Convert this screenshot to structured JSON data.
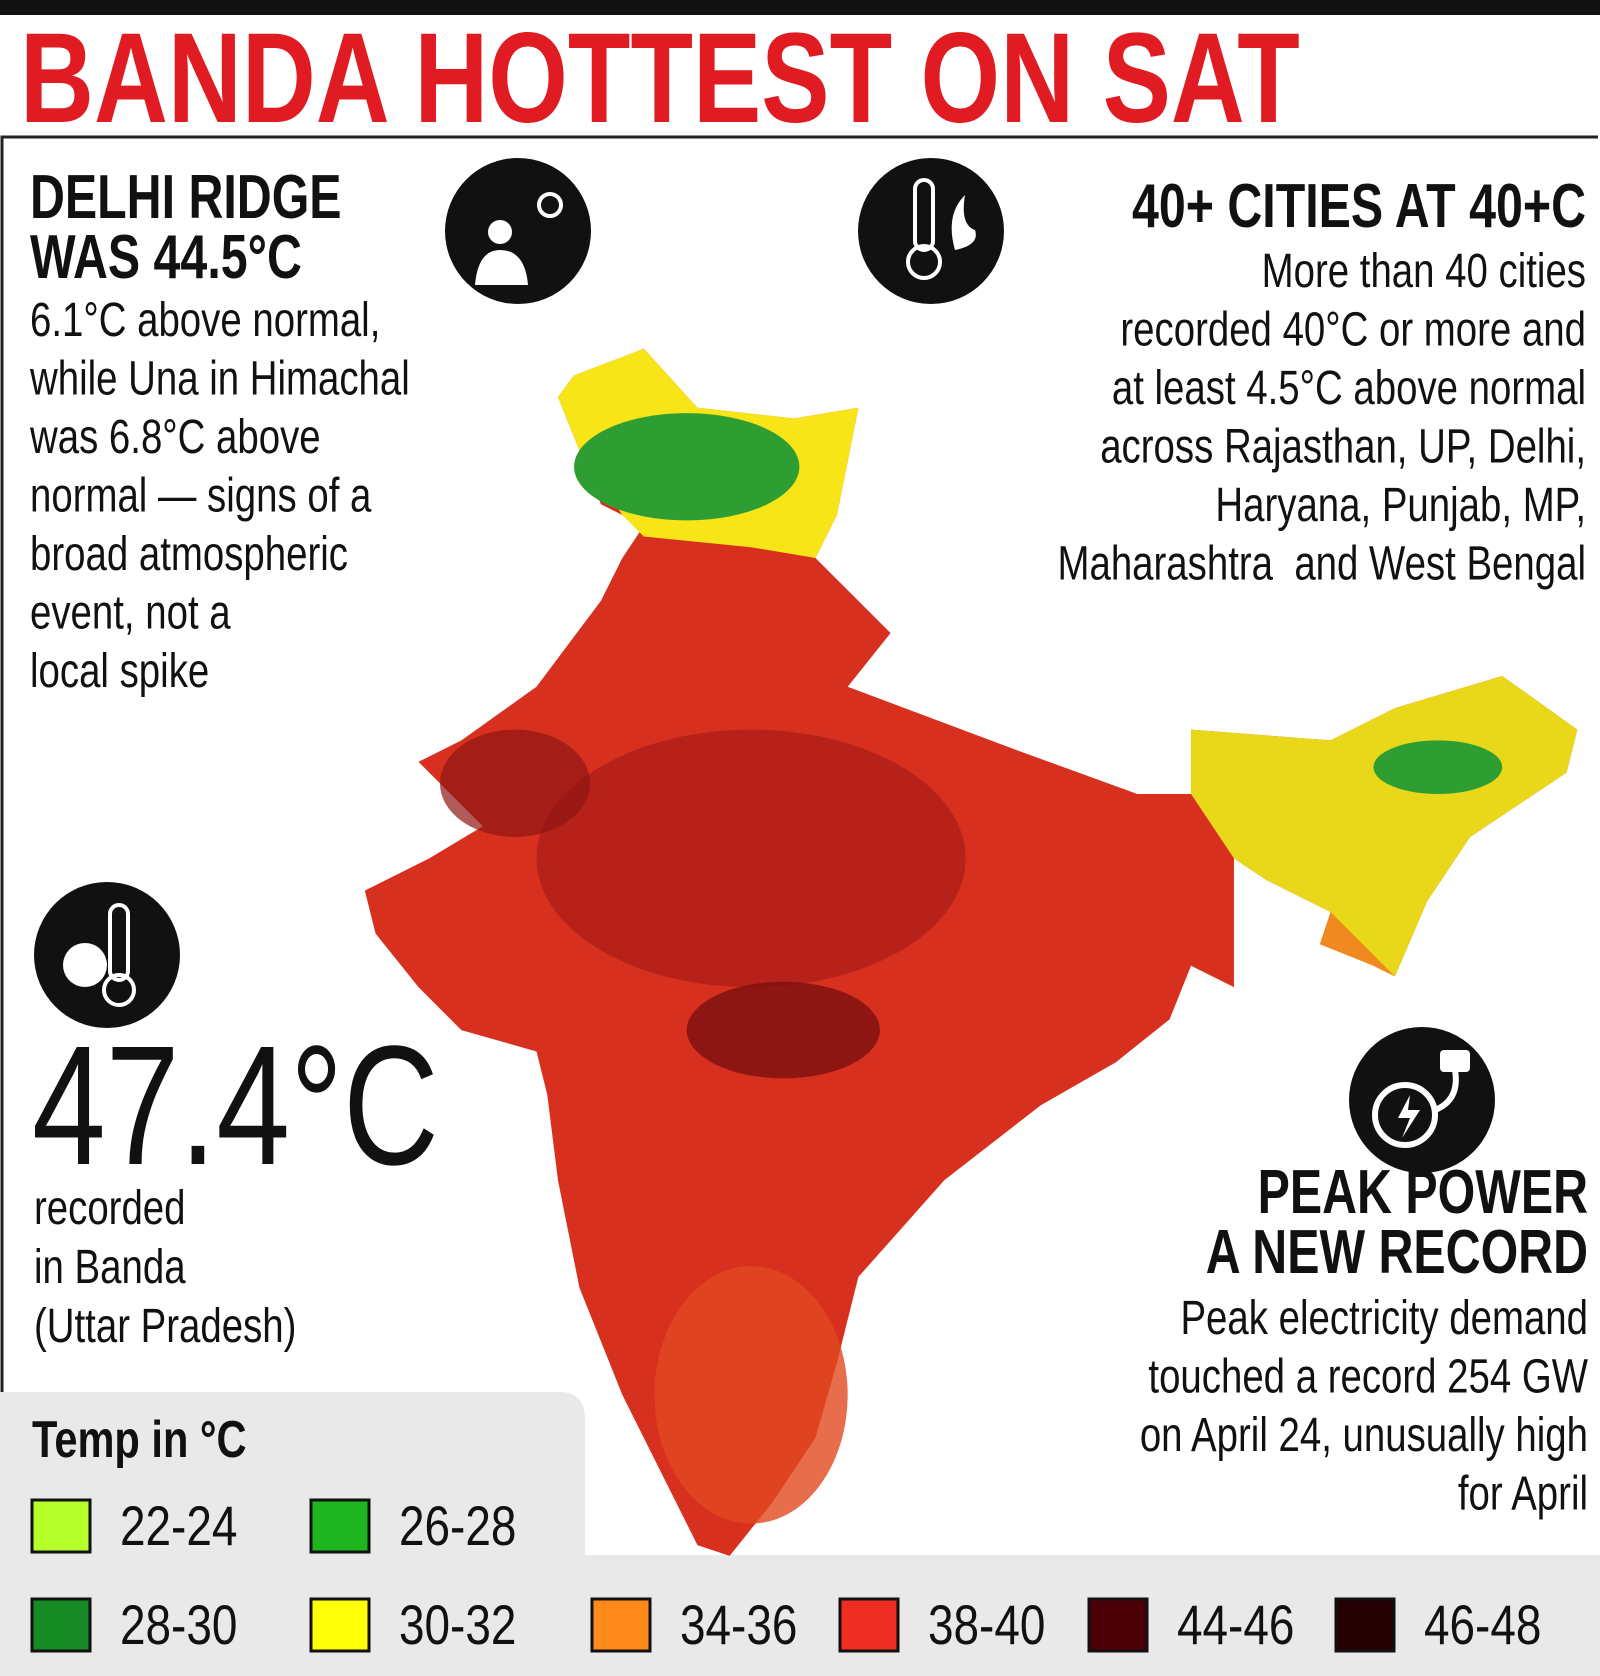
{
  "title": "BANDA HOTTEST ON SAT",
  "delhi_ridge": {
    "heading": [
      "DELHI RIDGE",
      "WAS 44.5°C"
    ],
    "body": [
      "6.1°C above normal,",
      "while Una in Himachal",
      "was 6.8°C above",
      "normal — signs of a",
      "broad atmospheric",
      "event, not a",
      "local spike"
    ]
  },
  "cities": {
    "heading": "40+ CITIES AT 40+C",
    "body": [
      "More than 40 cities",
      "recorded 40°C or more and",
      "at least 4.5°C above normal",
      "across Rajasthan, UP, Delhi,",
      "Haryana, Punjab, MP,",
      "Maharashtra  and West Bengal"
    ]
  },
  "banda": {
    "value": "47.4°C",
    "caption": [
      "recorded",
      "in Banda",
      "(Uttar Pradesh)"
    ]
  },
  "power": {
    "heading": [
      "PEAK POWER",
      "A NEW RECORD"
    ],
    "body": [
      "Peak electricity demand",
      "touched a record 254 GW",
      "on April 24, unusually high",
      "for April"
    ]
  },
  "legend": {
    "title": "Temp in °C",
    "items": [
      {
        "label": "22-24",
        "color": "#b4ff2a"
      },
      {
        "label": "26-28",
        "color": "#1fb51f"
      },
      {
        "label": "28-30",
        "color": "#158a25"
      },
      {
        "label": "30-32",
        "color": "#ffff0a"
      },
      {
        "label": "34-36",
        "color": "#ff8a1c"
      },
      {
        "label": "38-40",
        "color": "#ef2d22"
      },
      {
        "label": "44-46",
        "color": "#4a0006"
      },
      {
        "label": "46-48",
        "color": "#240003"
      }
    ]
  }
}
